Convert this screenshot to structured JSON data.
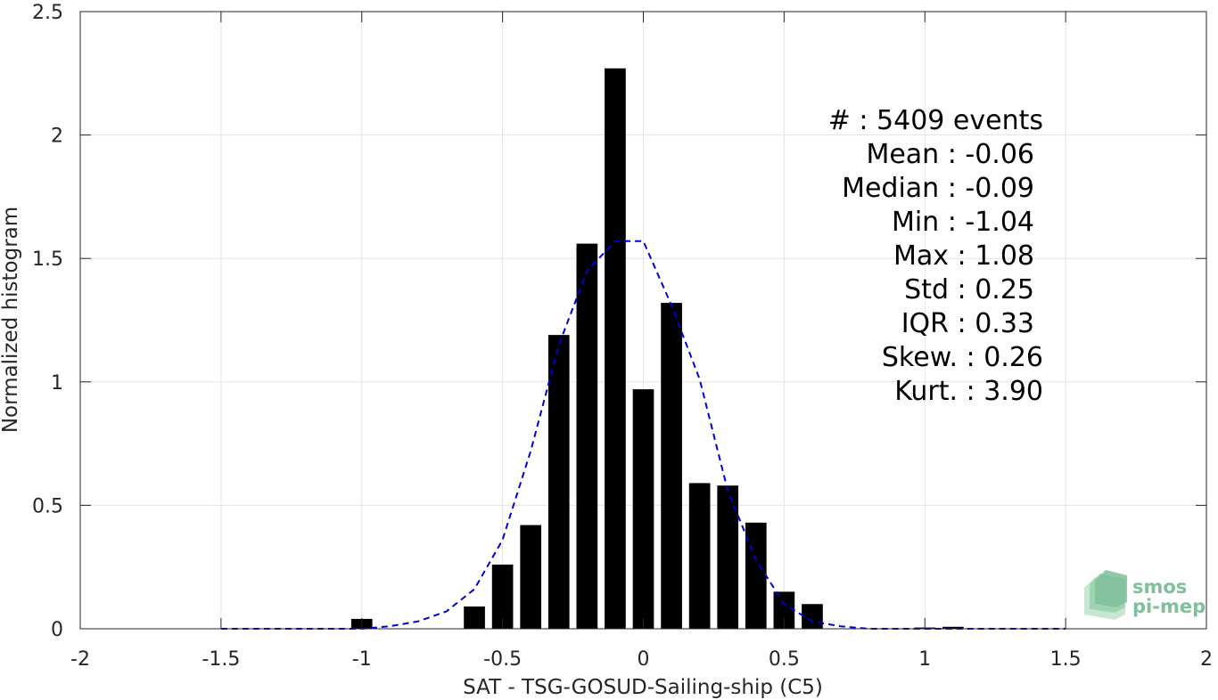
{
  "chart_data": {
    "type": "bar",
    "xlabel": "SAT - TSG-GOSUD-Sailing-ship (C5)",
    "ylabel": "Normalized histogram",
    "xlim": [
      -2,
      2
    ],
    "ylim": [
      0,
      2.5
    ],
    "xticks": [
      -2,
      -1.5,
      -1,
      -0.5,
      0,
      0.5,
      1,
      1.5,
      2
    ],
    "xtick_labels": [
      "-2",
      "-1.5",
      "-1",
      "-0.5",
      "0",
      "0.5",
      "1",
      "1.5",
      "2"
    ],
    "yticks": [
      0,
      0.5,
      1,
      1.5,
      2,
      2.5
    ],
    "ytick_labels": [
      "0",
      "0.5",
      "1",
      "1.5",
      "2",
      "2.5"
    ],
    "grid": true,
    "bar_width": 0.075,
    "bars": {
      "x": [
        -1.0,
        -0.6,
        -0.5,
        -0.4,
        -0.3,
        -0.2,
        -0.1,
        0.0,
        0.1,
        0.2,
        0.3,
        0.4,
        0.5,
        0.6,
        1.0,
        1.1
      ],
      "values": [
        0.04,
        0.09,
        0.26,
        0.42,
        1.19,
        1.56,
        2.27,
        0.97,
        1.32,
        0.59,
        0.58,
        0.43,
        0.15,
        0.1,
        0.005,
        0.008
      ]
    },
    "fit_curve": {
      "style": "dashed",
      "color": "#0000d0",
      "x": [
        -1.5,
        -1.4,
        -1.3,
        -1.2,
        -1.1,
        -1.0,
        -0.9,
        -0.8,
        -0.7,
        -0.6,
        -0.5,
        -0.4,
        -0.3,
        -0.2,
        -0.1,
        0.0,
        0.1,
        0.2,
        0.3,
        0.4,
        0.5,
        0.6,
        0.7,
        0.8,
        0.9,
        1.0,
        1.1,
        1.2,
        1.3,
        1.4,
        1.5
      ],
      "y": [
        0.0,
        0.0,
        0.0,
        0.0,
        0.0,
        0.0,
        0.01,
        0.03,
        0.07,
        0.16,
        0.36,
        0.72,
        1.15,
        1.45,
        1.57,
        1.57,
        1.31,
        1.01,
        0.56,
        0.28,
        0.1,
        0.03,
        0.01,
        0.0,
        0.0,
        0.0,
        0.0,
        0.0,
        0.0,
        0.0,
        0.0
      ]
    },
    "stats": [
      {
        "label": "#  ",
        "value": "5409 events"
      },
      {
        "label": "Mean",
        "value": "-0.06"
      },
      {
        "label": "Median",
        "value": "-0.09"
      },
      {
        "label": "Min",
        "value": "-1.04"
      },
      {
        "label": "Max",
        "value": "1.08"
      },
      {
        "label": "Std",
        "value": "0.25"
      },
      {
        "label": "IQR",
        "value": "0.33"
      },
      {
        "label": "Skew.",
        "value": "0.26"
      },
      {
        "label": "Kurt.",
        "value": "3.90"
      }
    ],
    "bar_color": "#000000",
    "grid_color": "#e3e3e3",
    "logo": {
      "line1": "smos",
      "line2": "pi-mep",
      "color": "#7fc09a"
    }
  }
}
